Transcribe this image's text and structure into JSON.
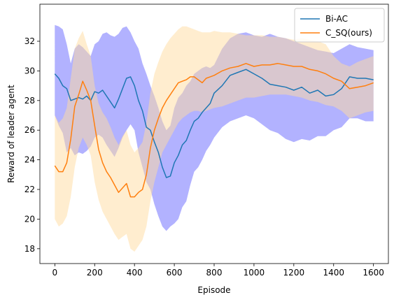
{
  "chart_data": {
    "type": "line",
    "xlabel": "Episode",
    "ylabel": "Reward of leader agent",
    "xlim": [
      -75,
      1675
    ],
    "ylim": [
      17,
      34.5
    ],
    "xticks": [
      0,
      200,
      400,
      600,
      800,
      1000,
      1200,
      1400,
      1600
    ],
    "yticks": [
      18,
      20,
      22,
      24,
      26,
      28,
      30,
      32
    ],
    "grid": false,
    "legend_position": "top-right",
    "series": [
      {
        "name": "Bi-AC",
        "color": "#1f77b4",
        "band_color": "#6666ff",
        "x": [
          0,
          20,
          40,
          60,
          80,
          100,
          120,
          140,
          160,
          180,
          200,
          220,
          240,
          260,
          280,
          300,
          320,
          340,
          360,
          380,
          400,
          420,
          440,
          460,
          480,
          500,
          520,
          540,
          560,
          580,
          600,
          620,
          640,
          660,
          680,
          700,
          720,
          740,
          760,
          780,
          800,
          840,
          880,
          920,
          960,
          1000,
          1040,
          1080,
          1120,
          1160,
          1200,
          1240,
          1280,
          1320,
          1360,
          1400,
          1440,
          1480,
          1520,
          1560,
          1600
        ],
        "values": [
          29.8,
          29.5,
          29.0,
          28.8,
          28.0,
          28.1,
          28.2,
          28.1,
          28.3,
          28.0,
          28.6,
          28.5,
          28.7,
          28.3,
          27.9,
          27.5,
          28.1,
          28.8,
          29.5,
          29.6,
          29.0,
          28.0,
          27.3,
          26.2,
          26.0,
          25.2,
          24.5,
          23.5,
          22.8,
          22.9,
          23.8,
          24.3,
          25.0,
          25.3,
          26.0,
          26.6,
          26.8,
          27.2,
          27.5,
          27.8,
          28.5,
          29.0,
          29.7,
          29.9,
          30.1,
          29.8,
          29.5,
          29.1,
          29.0,
          28.9,
          28.7,
          28.9,
          28.5,
          28.7,
          28.3,
          28.4,
          28.8,
          29.6,
          29.5,
          29.5,
          29.4
        ],
        "upper": [
          33.1,
          33.0,
          32.8,
          31.8,
          30.5,
          31.5,
          31.8,
          31.6,
          31.3,
          31.0,
          31.8,
          32.0,
          32.5,
          32.6,
          32.4,
          32.3,
          32.5,
          32.9,
          33.0,
          32.6,
          32.0,
          31.5,
          30.5,
          29.8,
          29.0,
          28.3,
          27.5,
          26.6,
          26.0,
          26.3,
          27.5,
          28.2,
          28.5,
          29.0,
          29.3,
          29.8,
          30.0,
          30.2,
          30.3,
          30.2,
          30.4,
          31.5,
          32.2,
          32.5,
          32.6,
          32.4,
          32.3,
          32.5,
          32.3,
          32.2,
          32.0,
          31.8,
          31.6,
          31.4,
          31.3,
          31.2,
          31.5,
          31.8,
          31.6,
          31.5,
          31.4
        ],
        "lower": [
          27.0,
          26.3,
          25.8,
          24.5,
          24.8,
          24.3,
          24.5,
          24.4,
          24.6,
          24.9,
          25.5,
          25.7,
          25.5,
          25.0,
          24.6,
          24.2,
          24.8,
          25.5,
          26.0,
          26.4,
          26.0,
          24.5,
          23.5,
          22.5,
          22.0,
          21.0,
          20.2,
          19.5,
          19.2,
          19.5,
          19.7,
          20.0,
          20.8,
          21.2,
          22.3,
          23.2,
          23.5,
          24.0,
          24.6,
          25.0,
          25.5,
          26.2,
          26.6,
          26.8,
          27.0,
          26.8,
          26.4,
          26.0,
          25.8,
          25.4,
          25.2,
          25.4,
          25.3,
          25.6,
          25.6,
          26.0,
          26.2,
          26.8,
          26.8,
          26.6,
          26.6
        ]
      },
      {
        "name": "C_SQ(ours)",
        "color": "#ff7f0e",
        "band_color": "#ffdba0",
        "x": [
          0,
          20,
          40,
          60,
          80,
          100,
          120,
          140,
          160,
          180,
          200,
          220,
          240,
          260,
          280,
          300,
          320,
          340,
          360,
          380,
          400,
          420,
          440,
          460,
          480,
          500,
          520,
          540,
          560,
          580,
          600,
          620,
          640,
          660,
          680,
          700,
          720,
          740,
          760,
          780,
          800,
          840,
          880,
          920,
          960,
          1000,
          1040,
          1080,
          1120,
          1160,
          1200,
          1240,
          1280,
          1320,
          1360,
          1400,
          1440,
          1480,
          1520,
          1560,
          1600
        ],
        "values": [
          23.6,
          23.2,
          23.2,
          23.8,
          25.4,
          27.6,
          28.4,
          29.3,
          28.7,
          28.0,
          26.3,
          24.7,
          23.8,
          23.2,
          22.8,
          22.3,
          21.8,
          22.1,
          22.4,
          21.5,
          21.5,
          21.8,
          22.0,
          23.0,
          24.8,
          26.0,
          26.8,
          27.5,
          28.0,
          28.4,
          28.8,
          29.2,
          29.3,
          29.4,
          29.6,
          29.6,
          29.4,
          29.2,
          29.5,
          29.6,
          29.7,
          30.0,
          30.2,
          30.3,
          30.5,
          30.3,
          30.4,
          30.4,
          30.5,
          30.4,
          30.3,
          30.3,
          30.1,
          30.0,
          29.8,
          29.5,
          29.3,
          28.8,
          28.9,
          29.0,
          29.2
        ],
        "upper": [
          27.0,
          26.5,
          26.8,
          27.5,
          29.5,
          31.5,
          32.2,
          32.7,
          31.8,
          31.0,
          29.0,
          27.8,
          27.2,
          26.8,
          26.2,
          25.5,
          25.0,
          25.6,
          26.0,
          25.0,
          24.5,
          24.8,
          25.2,
          26.5,
          28.5,
          29.8,
          30.6,
          31.3,
          31.8,
          32.2,
          32.5,
          32.8,
          33.0,
          33.0,
          32.9,
          32.8,
          32.7,
          32.6,
          32.6,
          32.6,
          32.7,
          32.6,
          32.6,
          32.5,
          32.4,
          32.4,
          32.4,
          32.3,
          32.3,
          32.2,
          32.1,
          32.2,
          32.1,
          32.0,
          31.8,
          31.0,
          30.5,
          30.3,
          30.6,
          30.8,
          31.0
        ],
        "lower": [
          20.0,
          19.5,
          19.7,
          20.2,
          21.5,
          23.5,
          24.8,
          25.5,
          25.0,
          24.3,
          22.5,
          21.3,
          20.5,
          20.0,
          19.5,
          19.0,
          18.6,
          18.8,
          19.0,
          18.0,
          17.8,
          18.2,
          18.6,
          19.5,
          21.2,
          22.5,
          23.5,
          24.5,
          25.0,
          25.5,
          26.0,
          26.5,
          26.8,
          27.0,
          27.2,
          27.3,
          27.3,
          27.2,
          27.3,
          27.4,
          27.5,
          27.6,
          27.8,
          28.0,
          28.2,
          28.2,
          28.3,
          28.4,
          28.4,
          28.4,
          28.3,
          28.2,
          28.0,
          27.9,
          27.7,
          27.6,
          27.3,
          26.8,
          27.0,
          27.2,
          27.3
        ]
      }
    ]
  }
}
